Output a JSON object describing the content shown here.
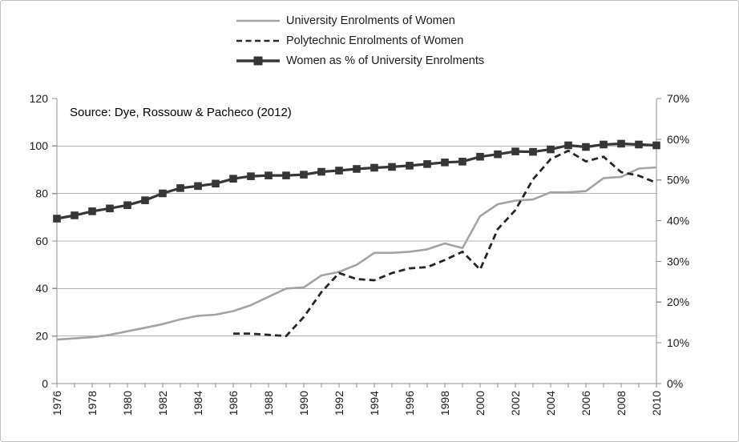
{
  "figure": {
    "background": "#ffffff",
    "border_color": "#bfbfbf"
  },
  "chart_data": {
    "type": "line",
    "title": "",
    "annotation": "Source: Dye, Rossouw & Pacheco (2012)",
    "grid": true,
    "legend_position": "top-center",
    "x": [
      1976,
      1977,
      1978,
      1979,
      1980,
      1981,
      1982,
      1983,
      1984,
      1985,
      1986,
      1987,
      1988,
      1989,
      1990,
      1991,
      1992,
      1993,
      1994,
      1995,
      1996,
      1997,
      1998,
      1999,
      2000,
      2001,
      2002,
      2003,
      2004,
      2005,
      2006,
      2007,
      2008,
      2009,
      2010
    ],
    "x_tick_labels": [
      "1976",
      "1978",
      "1980",
      "1982",
      "1984",
      "1986",
      "1988",
      "1990",
      "1992",
      "1994",
      "1996",
      "1998",
      "2000",
      "2002",
      "2004",
      "2006",
      "2008",
      "2010"
    ],
    "left_axis": {
      "min": 0,
      "max": 120,
      "step": 20,
      "tick_labels": [
        "0",
        "20",
        "40",
        "60",
        "80",
        "100",
        "120"
      ]
    },
    "right_axis": {
      "min": 0,
      "max": 70,
      "step": 10,
      "tick_labels": [
        "0%",
        "10%",
        "20%",
        "30%",
        "40%",
        "50%",
        "60%",
        "70%"
      ]
    },
    "colors": {
      "grid": "#b3b3b3",
      "axis": "#8f8f8f",
      "tick_text": "#1a1a1a"
    },
    "series": [
      {
        "name": "University Enrolments of Women",
        "axis": "left",
        "style": "solid",
        "marker": "none",
        "color": "#a3a3a3",
        "width": 2.6,
        "values": [
          18.5,
          19,
          19.5,
          20.5,
          22,
          23.5,
          25,
          27,
          28.5,
          29,
          30.5,
          33,
          36.5,
          40,
          40.5,
          45.5,
          47,
          50,
          55,
          55,
          55.5,
          56.5,
          59,
          57,
          70.5,
          75.5,
          77,
          77.5,
          80.5,
          80.5,
          81,
          86.5,
          87,
          90.5,
          91
        ]
      },
      {
        "name": "Polytechnic Enrolments of Women",
        "axis": "left",
        "style": "dashed",
        "marker": "none",
        "color": "#262626",
        "width": 2.8,
        "values": [
          null,
          null,
          null,
          null,
          null,
          null,
          null,
          null,
          null,
          null,
          21,
          21,
          20.5,
          20,
          28,
          38.5,
          46.5,
          44,
          43.5,
          46.5,
          48.5,
          49,
          52,
          55.5,
          48,
          65,
          73,
          86,
          94.5,
          98,
          93.5,
          95.5,
          89,
          87.5,
          84.5
        ]
      },
      {
        "name": "Women as % of University Enrolments",
        "axis": "right",
        "style": "solid",
        "marker": "square",
        "color": "#363636",
        "width": 3.2,
        "values": [
          40.5,
          41.3,
          42.3,
          43,
          43.8,
          45,
          46.7,
          48,
          48.5,
          49.1,
          50.3,
          50.9,
          51.1,
          51.1,
          51.3,
          52,
          52.3,
          52.7,
          53,
          53.2,
          53.5,
          53.9,
          54.3,
          54.5,
          55.7,
          56.3,
          57,
          56.9,
          57.5,
          58.5,
          58.1,
          58.7,
          58.9,
          58.7,
          58.5
        ]
      }
    ]
  }
}
